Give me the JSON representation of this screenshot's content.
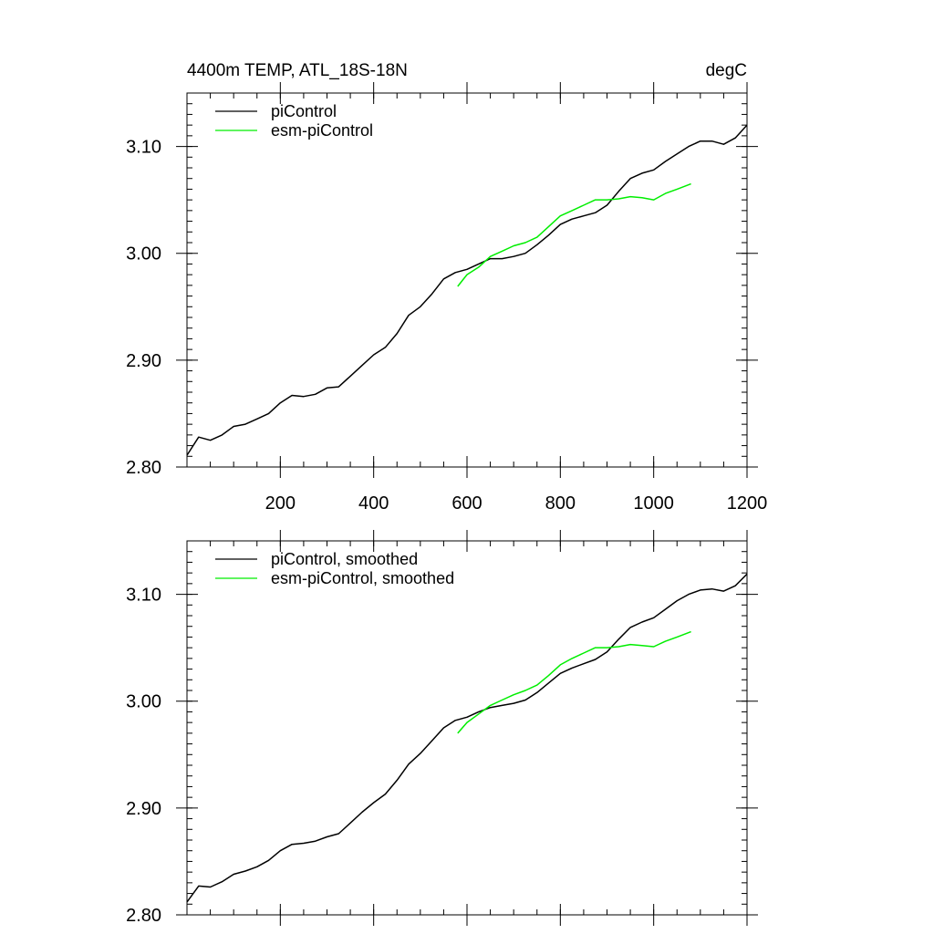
{
  "chart_data": [
    {
      "type": "line",
      "title_left": "4400m TEMP, ATL_18S-18N",
      "title_right": "degC",
      "xlim": [
        0,
        1200
      ],
      "ylim": [
        2.8,
        3.15
      ],
      "x_ticks": [
        200,
        400,
        600,
        800,
        1000,
        1200
      ],
      "y_ticks": [
        "2.80",
        "2.90",
        "3.00",
        "3.10"
      ],
      "show_x_labels": true,
      "legend_position": "top-left",
      "series": [
        {
          "name": "piControl",
          "color": "#000000",
          "x": [
            0,
            25,
            50,
            75,
            100,
            125,
            150,
            175,
            200,
            225,
            250,
            275,
            300,
            325,
            350,
            375,
            400,
            425,
            450,
            475,
            500,
            525,
            550,
            575,
            600,
            625,
            650,
            675,
            700,
            725,
            750,
            775,
            800,
            825,
            850,
            875,
            900,
            925,
            950,
            975,
            1000,
            1025,
            1050,
            1075,
            1100,
            1125,
            1150,
            1175,
            1200
          ],
          "values": [
            2.811,
            2.828,
            2.825,
            2.83,
            2.838,
            2.84,
            2.845,
            2.85,
            2.86,
            2.867,
            2.866,
            2.868,
            2.874,
            2.875,
            2.885,
            2.895,
            2.905,
            2.912,
            2.925,
            2.942,
            2.95,
            2.962,
            2.976,
            2.982,
            2.985,
            2.99,
            2.995,
            2.995,
            2.997,
            3.0,
            3.008,
            3.017,
            3.027,
            3.032,
            3.035,
            3.038,
            3.045,
            3.058,
            3.07,
            3.075,
            3.078,
            3.086,
            3.093,
            3.1,
            3.105,
            3.105,
            3.102,
            3.108,
            3.12
          ]
        },
        {
          "name": "esm-piControl",
          "color": "#00ee00",
          "x": [
            580,
            600,
            625,
            650,
            675,
            700,
            725,
            750,
            775,
            800,
            825,
            850,
            875,
            900,
            925,
            950,
            975,
            1000,
            1025,
            1050,
            1080
          ],
          "values": [
            2.969,
            2.98,
            2.987,
            2.997,
            3.002,
            3.007,
            3.01,
            3.015,
            3.025,
            3.035,
            3.04,
            3.045,
            3.05,
            3.05,
            3.051,
            3.053,
            3.052,
            3.05,
            3.056,
            3.06,
            3.065
          ]
        }
      ]
    },
    {
      "type": "line",
      "xlim": [
        0,
        1200
      ],
      "ylim": [
        2.8,
        3.15
      ],
      "x_ticks": [
        200,
        400,
        600,
        800,
        1000,
        1200
      ],
      "y_ticks": [
        "2.80",
        "2.90",
        "3.00",
        "3.10"
      ],
      "show_x_labels": false,
      "legend_position": "top-left",
      "series": [
        {
          "name": "piControl, smoothed",
          "color": "#000000",
          "x": [
            0,
            25,
            50,
            75,
            100,
            125,
            150,
            175,
            200,
            225,
            250,
            275,
            300,
            325,
            350,
            375,
            400,
            425,
            450,
            475,
            500,
            525,
            550,
            575,
            600,
            625,
            650,
            675,
            700,
            725,
            750,
            775,
            800,
            825,
            850,
            875,
            900,
            925,
            950,
            975,
            1000,
            1025,
            1050,
            1075,
            1100,
            1125,
            1150,
            1175,
            1200
          ],
          "values": [
            2.812,
            2.827,
            2.826,
            2.831,
            2.838,
            2.841,
            2.845,
            2.851,
            2.86,
            2.866,
            2.867,
            2.869,
            2.873,
            2.876,
            2.886,
            2.896,
            2.905,
            2.913,
            2.926,
            2.941,
            2.951,
            2.963,
            2.975,
            2.982,
            2.985,
            2.99,
            2.994,
            2.996,
            2.998,
            3.001,
            3.008,
            3.017,
            3.026,
            3.031,
            3.035,
            3.039,
            3.046,
            3.058,
            3.069,
            3.074,
            3.078,
            3.086,
            3.094,
            3.1,
            3.104,
            3.105,
            3.103,
            3.108,
            3.119
          ]
        },
        {
          "name": "esm-piControl, smoothed",
          "color": "#00ee00",
          "x": [
            580,
            600,
            625,
            650,
            675,
            700,
            725,
            750,
            775,
            800,
            825,
            850,
            875,
            900,
            925,
            950,
            975,
            1000,
            1025,
            1050,
            1080
          ],
          "values": [
            2.97,
            2.98,
            2.988,
            2.996,
            3.001,
            3.006,
            3.01,
            3.015,
            3.024,
            3.034,
            3.04,
            3.045,
            3.05,
            3.05,
            3.051,
            3.053,
            3.052,
            3.051,
            3.056,
            3.06,
            3.065
          ]
        }
      ]
    }
  ]
}
